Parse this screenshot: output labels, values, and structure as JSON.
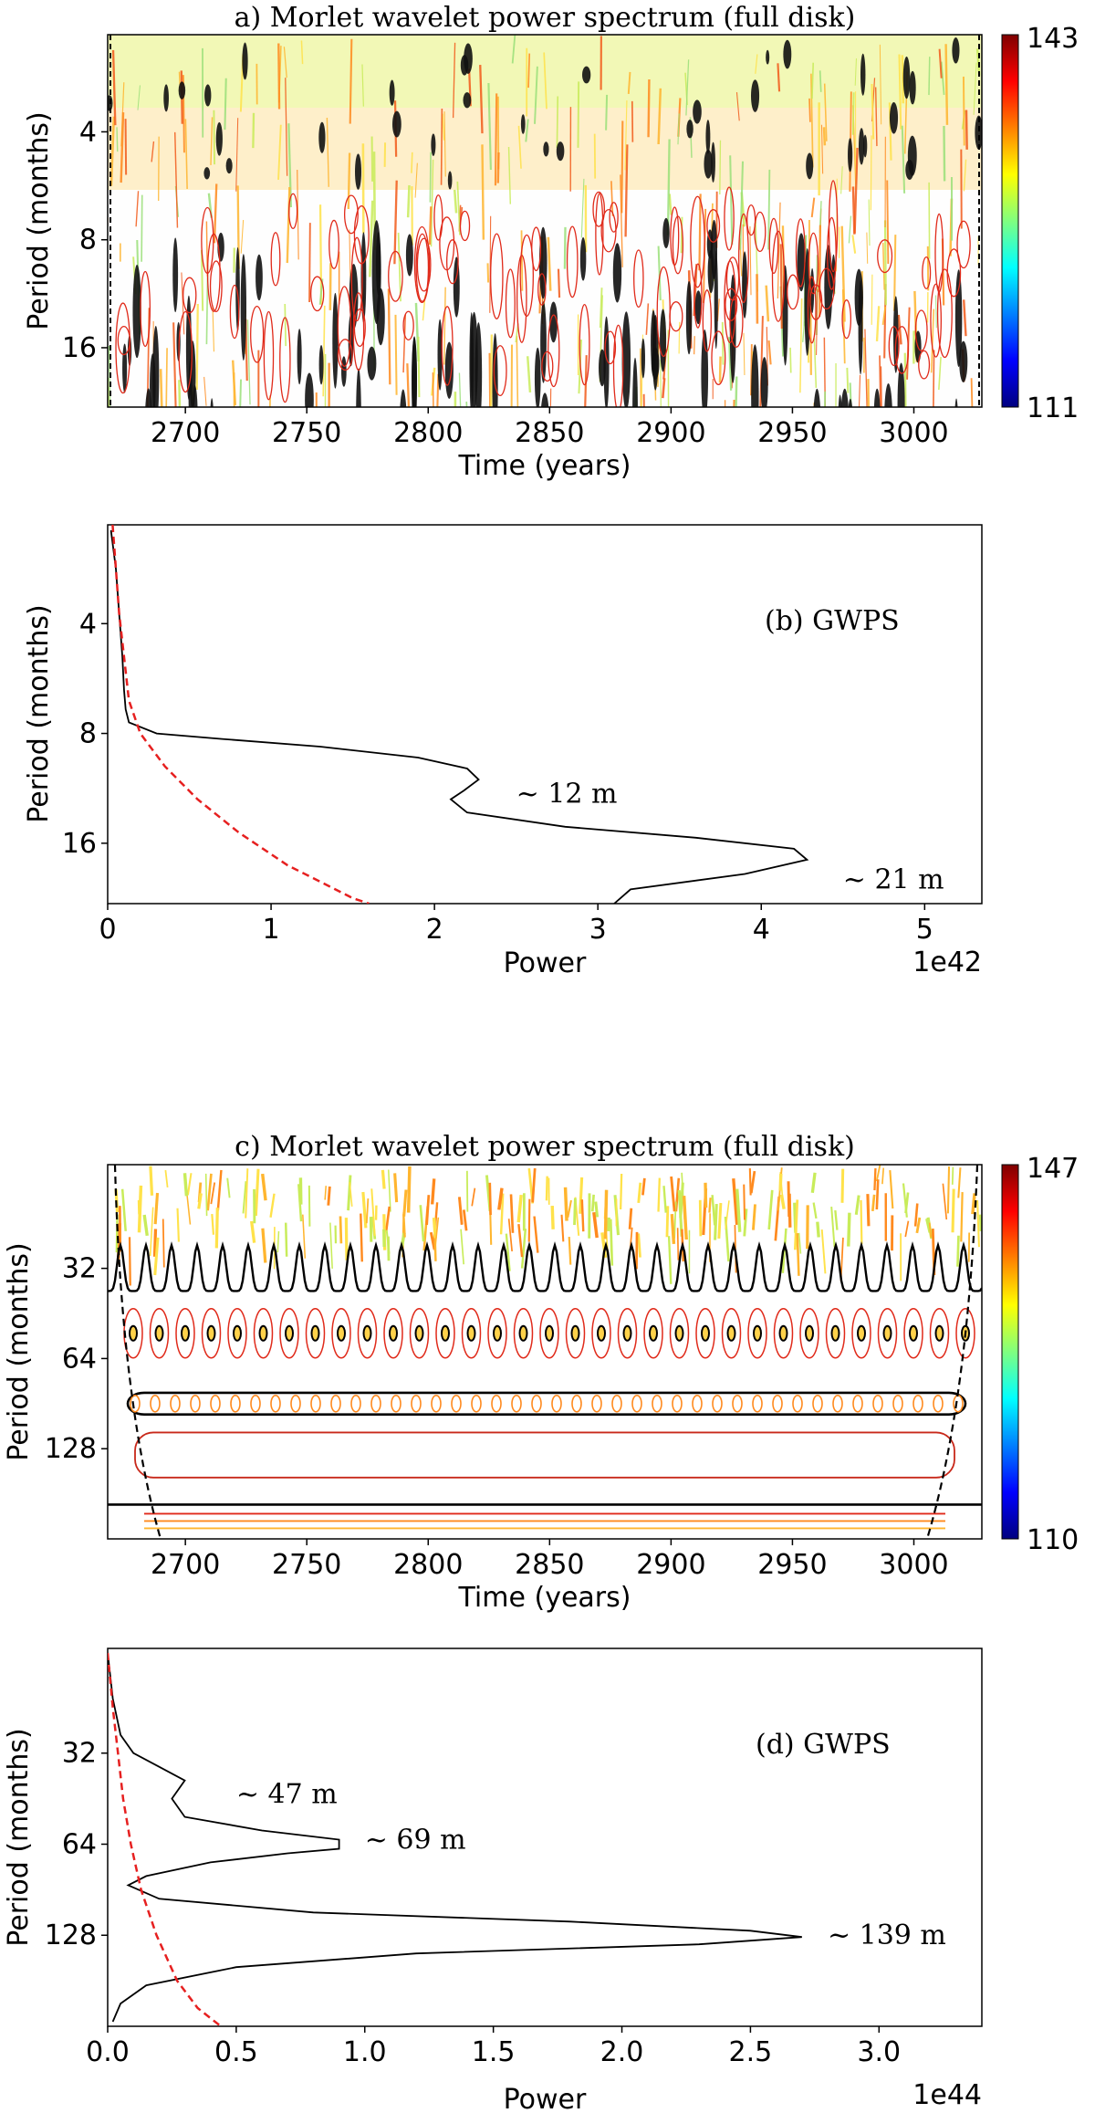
{
  "chart_data": [
    {
      "type": "heatmap",
      "panel": "a",
      "title": "a) Morlet wavelet power spectrum (full disk)",
      "xlabel": "Time (years)",
      "ylabel": "Period (months)",
      "xlim": [
        2668,
        3028
      ],
      "ylim_log2_period": [
        1.1,
        4.55
      ],
      "xticks": [
        2700,
        2750,
        2800,
        2850,
        2900,
        2950,
        3000
      ],
      "yticks": [
        4,
        8,
        16
      ],
      "colorbar": {
        "min": 111,
        "max": 143,
        "min_label": "111",
        "max_label": "143"
      }
    },
    {
      "type": "line",
      "panel": "b",
      "annotation": "(b) GWPS",
      "xlabel": "Power",
      "ylabel": "Period (months)",
      "xlim": [
        0,
        5.35
      ],
      "ylim_log2_period": [
        1.1,
        4.55
      ],
      "xticks": [
        0,
        1,
        2,
        3,
        4,
        5
      ],
      "yticks": [
        4,
        8,
        16
      ],
      "offset_label": "1e42",
      "series": [
        {
          "name": "GWPS",
          "color": "#000000",
          "points": [
            [
              0.02,
              1.15
            ],
            [
              0.05,
              1.5
            ],
            [
              0.07,
              1.9
            ],
            [
              0.09,
              2.3
            ],
            [
              0.1,
              2.6
            ],
            [
              0.11,
              2.78
            ],
            [
              0.13,
              2.9
            ],
            [
              0.3,
              3.0
            ],
            [
              0.7,
              3.05
            ],
            [
              1.3,
              3.12
            ],
            [
              1.9,
              3.22
            ],
            [
              2.2,
              3.32
            ],
            [
              2.27,
              3.42
            ],
            [
              2.18,
              3.52
            ],
            [
              2.1,
              3.6
            ],
            [
              2.2,
              3.72
            ],
            [
              2.8,
              3.85
            ],
            [
              3.6,
              3.95
            ],
            [
              4.2,
              4.05
            ],
            [
              4.28,
              4.15
            ],
            [
              3.9,
              4.28
            ],
            [
              3.2,
              4.42
            ],
            [
              3.1,
              4.55
            ]
          ]
        },
        {
          "name": "significance",
          "color": "#e62020",
          "dashed": true,
          "points": [
            [
              0.03,
              1.1
            ],
            [
              0.05,
              1.5
            ],
            [
              0.07,
              1.9
            ],
            [
              0.1,
              2.3
            ],
            [
              0.13,
              2.7
            ],
            [
              0.2,
              3.0
            ],
            [
              0.35,
              3.3
            ],
            [
              0.55,
              3.6
            ],
            [
              0.8,
              3.9
            ],
            [
              1.1,
              4.2
            ],
            [
              1.5,
              4.5
            ],
            [
              1.6,
              4.55
            ]
          ]
        }
      ],
      "annotations": [
        {
          "text": "~ 12 m",
          "x": 2.5,
          "y_log2": 3.55
        },
        {
          "text": "~ 21 m",
          "x": 4.5,
          "y_log2": 4.33
        }
      ]
    },
    {
      "type": "heatmap",
      "panel": "c",
      "title": "c) Morlet wavelet power spectrum (full disk)",
      "xlabel": "Time (years)",
      "ylabel": "Period (months)",
      "xlim": [
        2668,
        3028
      ],
      "ylim_log2_period": [
        3.85,
        8.0
      ],
      "xticks": [
        2700,
        2750,
        2800,
        2850,
        2900,
        2950,
        3000
      ],
      "yticks": [
        32,
        64,
        128
      ],
      "colorbar": {
        "min": 110,
        "max": 147,
        "min_label": "110",
        "max_label": "147"
      }
    },
    {
      "type": "line",
      "panel": "d",
      "annotation": "(d) GWPS",
      "xlabel": "Power",
      "ylabel": "Period (months)",
      "xlim": [
        0,
        3.4
      ],
      "ylim_log2_period": [
        3.85,
        8.0
      ],
      "xticks": [
        0,
        0.5,
        1,
        1.5,
        2,
        2.5,
        3
      ],
      "xtick_labels": [
        "0.0",
        "0.5",
        "1.0",
        "1.5",
        "2.0",
        "2.5",
        "3.0"
      ],
      "yticks": [
        32,
        64,
        128
      ],
      "offset_label": "1e44",
      "series": [
        {
          "name": "GWPS",
          "color": "#000000",
          "points": [
            [
              0.0,
              3.9
            ],
            [
              0.02,
              4.4
            ],
            [
              0.05,
              4.8
            ],
            [
              0.1,
              5.0
            ],
            [
              0.2,
              5.15
            ],
            [
              0.3,
              5.3
            ],
            [
              0.25,
              5.5
            ],
            [
              0.3,
              5.7
            ],
            [
              0.6,
              5.85
            ],
            [
              0.9,
              5.95
            ],
            [
              0.9,
              6.05
            ],
            [
              0.7,
              6.1
            ],
            [
              0.4,
              6.2
            ],
            [
              0.15,
              6.35
            ],
            [
              0.08,
              6.45
            ],
            [
              0.2,
              6.6
            ],
            [
              0.8,
              6.75
            ],
            [
              1.8,
              6.85
            ],
            [
              2.5,
              6.95
            ],
            [
              2.7,
              7.02
            ],
            [
              2.3,
              7.1
            ],
            [
              1.2,
              7.2
            ],
            [
              0.5,
              7.35
            ],
            [
              0.15,
              7.55
            ],
            [
              0.05,
              7.75
            ],
            [
              0.02,
              7.95
            ]
          ]
        },
        {
          "name": "significance",
          "color": "#e62020",
          "dashed": true,
          "points": [
            [
              0.0,
              3.9
            ],
            [
              0.02,
              4.5
            ],
            [
              0.04,
              5.0
            ],
            [
              0.06,
              5.5
            ],
            [
              0.09,
              6.0
            ],
            [
              0.13,
              6.5
            ],
            [
              0.19,
              7.0
            ],
            [
              0.27,
              7.5
            ],
            [
              0.35,
              7.8
            ],
            [
              0.44,
              8.0
            ]
          ]
        }
      ],
      "annotations": [
        {
          "text": "~ 47 m",
          "x": 0.5,
          "y_log2": 5.45
        },
        {
          "text": "~ 69 m",
          "x": 1.0,
          "y_log2": 5.95
        },
        {
          "text": "~ 139 m",
          "x": 2.8,
          "y_log2": 7.0
        }
      ]
    }
  ]
}
